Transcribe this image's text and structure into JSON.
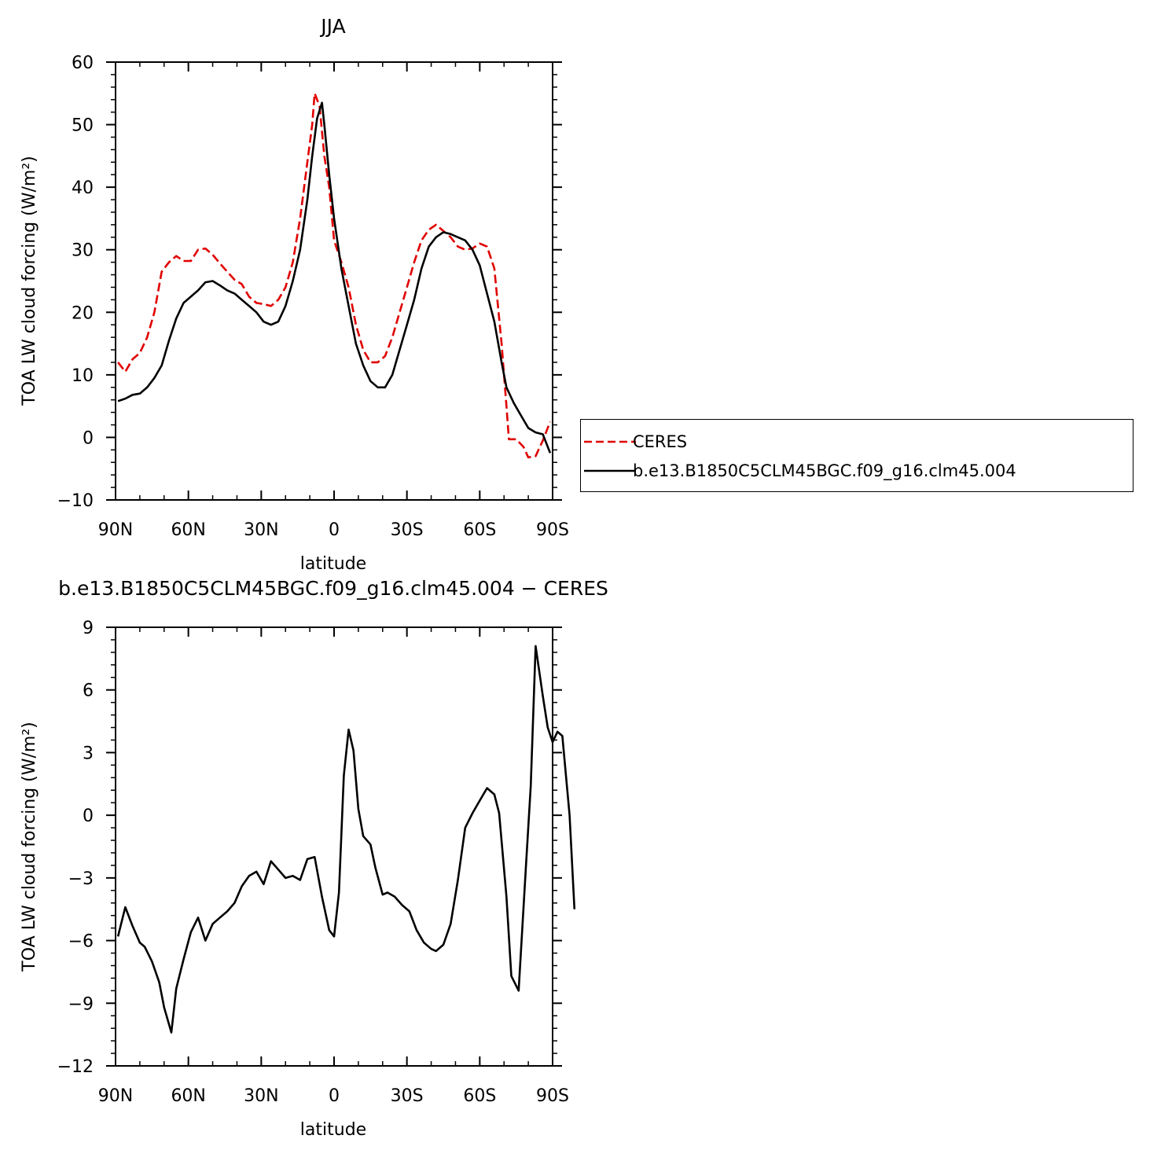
{
  "chart_data": [
    {
      "type": "line",
      "title": "JJA",
      "xlabel": "latitude",
      "ylabel": "TOA LW cloud forcing (W/m²)",
      "xlim": [
        90,
        -90
      ],
      "ylim": [
        -10,
        60
      ],
      "xticks": [
        {
          "value": 90,
          "label": "90N"
        },
        {
          "value": 60,
          "label": "60N"
        },
        {
          "value": 30,
          "label": "30N"
        },
        {
          "value": 0,
          "label": "0"
        },
        {
          "value": -30,
          "label": "30S"
        },
        {
          "value": -60,
          "label": "60S"
        },
        {
          "value": -90,
          "label": "90S"
        }
      ],
      "yticks": [
        {
          "value": 60,
          "label": "60"
        },
        {
          "value": 50,
          "label": "50"
        },
        {
          "value": 40,
          "label": "40"
        },
        {
          "value": 30,
          "label": "30"
        },
        {
          "value": 20,
          "label": "20"
        },
        {
          "value": 10,
          "label": "10"
        },
        {
          "value": 0,
          "label": "0"
        },
        {
          "value": -10,
          "label": "−10"
        }
      ],
      "legend_position": "right",
      "series": [
        {
          "name": "CERES",
          "color": "#e00000",
          "dash": true,
          "points": [
            [
              89,
              12
            ],
            [
              86,
              10.5
            ],
            [
              83,
              12.5
            ],
            [
              80,
              13.5
            ],
            [
              77,
              16
            ],
            [
              74,
              20
            ],
            [
              71,
              26.5
            ],
            [
              68,
              28
            ],
            [
              65,
              29
            ],
            [
              62,
              28.2
            ],
            [
              59,
              28.2
            ],
            [
              56,
              30
            ],
            [
              53,
              30.2
            ],
            [
              50,
              29.2
            ],
            [
              47,
              27.8
            ],
            [
              44,
              26.5
            ],
            [
              41,
              25.2
            ],
            [
              38,
              24.5
            ],
            [
              35,
              22.5
            ],
            [
              32,
              21.5
            ],
            [
              29,
              21.3
            ],
            [
              26,
              21
            ],
            [
              23,
              22
            ],
            [
              20,
              24
            ],
            [
              17,
              28
            ],
            [
              14,
              35
            ],
            [
              11,
              44
            ],
            [
              9,
              50
            ],
            [
              8,
              55
            ],
            [
              6,
              53
            ],
            [
              4,
              45
            ],
            [
              2,
              40
            ],
            [
              0,
              31.5
            ],
            [
              -3,
              28
            ],
            [
              -6,
              24
            ],
            [
              -9,
              18
            ],
            [
              -12,
              14
            ],
            [
              -15,
              12
            ],
            [
              -18,
              12
            ],
            [
              -21,
              13
            ],
            [
              -24,
              16
            ],
            [
              -27,
              20
            ],
            [
              -30,
              24
            ],
            [
              -33,
              28
            ],
            [
              -36,
              31.5
            ],
            [
              -39,
              33.2
            ],
            [
              -42,
              34
            ],
            [
              -45,
              33
            ],
            [
              -48,
              32
            ],
            [
              -51,
              30.5
            ],
            [
              -54,
              30
            ],
            [
              -57,
              30.2
            ],
            [
              -60,
              31
            ],
            [
              -63,
              30.5
            ],
            [
              -66,
              27
            ],
            [
              -69,
              15
            ],
            [
              -71,
              5
            ],
            [
              -72,
              -0.3
            ],
            [
              -75,
              -0.3
            ],
            [
              -78,
              -1.5
            ],
            [
              -80,
              -3.2
            ],
            [
              -83,
              -3
            ],
            [
              -86,
              -0.5
            ],
            [
              -89,
              2.5
            ]
          ]
        },
        {
          "name": "b.e13.B1850C5CLM45BGC.f09_g16.clm45.004",
          "color": "#000000",
          "dash": false,
          "points": [
            [
              89,
              5.8
            ],
            [
              86,
              6.2
            ],
            [
              83,
              6.8
            ],
            [
              80,
              7
            ],
            [
              77,
              8
            ],
            [
              74,
              9.5
            ],
            [
              71,
              11.5
            ],
            [
              68,
              15.5
            ],
            [
              65,
              19
            ],
            [
              62,
              21.5
            ],
            [
              59,
              22.5
            ],
            [
              56,
              23.5
            ],
            [
              53,
              24.8
            ],
            [
              50,
              25
            ],
            [
              47,
              24.3
            ],
            [
              44,
              23.5
            ],
            [
              41,
              23
            ],
            [
              38,
              22
            ],
            [
              35,
              21
            ],
            [
              32,
              20
            ],
            [
              29,
              18.5
            ],
            [
              26,
              18
            ],
            [
              23,
              18.5
            ],
            [
              20,
              21
            ],
            [
              17,
              25
            ],
            [
              14,
              30
            ],
            [
              11,
              38
            ],
            [
              9,
              45
            ],
            [
              7,
              51
            ],
            [
              5,
              53.5
            ],
            [
              4,
              50
            ],
            [
              2,
              42
            ],
            [
              0,
              35
            ],
            [
              -3,
              27
            ],
            [
              -6,
              21
            ],
            [
              -9,
              15
            ],
            [
              -12,
              11.5
            ],
            [
              -15,
              9
            ],
            [
              -18,
              8
            ],
            [
              -21,
              8
            ],
            [
              -24,
              10
            ],
            [
              -27,
              14
            ],
            [
              -30,
              18
            ],
            [
              -33,
              22
            ],
            [
              -36,
              27
            ],
            [
              -39,
              30.5
            ],
            [
              -42,
              32
            ],
            [
              -45,
              32.8
            ],
            [
              -48,
              32.5
            ],
            [
              -51,
              32
            ],
            [
              -54,
              31.5
            ],
            [
              -57,
              30
            ],
            [
              -60,
              27.5
            ],
            [
              -63,
              23
            ],
            [
              -66,
              18.5
            ],
            [
              -69,
              12
            ],
            [
              -71,
              8
            ],
            [
              -74,
              5.5
            ],
            [
              -77,
              3.5
            ],
            [
              -80,
              1.5
            ],
            [
              -83,
              0.8
            ],
            [
              -86,
              0.5
            ],
            [
              -89,
              -2.5
            ]
          ]
        }
      ]
    },
    {
      "type": "line",
      "title": "b.e13.B1850C5CLM45BGC.f09_g16.clm45.004 − CERES",
      "xlabel": "latitude",
      "ylabel": "TOA LW cloud forcing (W/m²)",
      "xlim": [
        90,
        -90
      ],
      "ylim": [
        -12,
        9
      ],
      "xticks": [
        {
          "value": 90,
          "label": "90N"
        },
        {
          "value": 60,
          "label": "60N"
        },
        {
          "value": 30,
          "label": "30N"
        },
        {
          "value": 0,
          "label": "0"
        },
        {
          "value": -30,
          "label": "30S"
        },
        {
          "value": -60,
          "label": "60S"
        },
        {
          "value": -90,
          "label": "90S"
        }
      ],
      "yticks": [
        {
          "value": 9,
          "label": "9"
        },
        {
          "value": 6,
          "label": "6"
        },
        {
          "value": 3,
          "label": "3"
        },
        {
          "value": 0,
          "label": "0"
        },
        {
          "value": -3,
          "label": "−3"
        },
        {
          "value": -6,
          "label": "−6"
        },
        {
          "value": -9,
          "label": "−9"
        },
        {
          "value": -12,
          "label": "−12"
        }
      ],
      "series": [
        {
          "name": "",
          "color": "#000000",
          "dash": false,
          "points": [
            [
              89,
              -5.8
            ],
            [
              86,
              -4.4
            ],
            [
              83,
              -5.3
            ],
            [
              80,
              -6.1
            ],
            [
              78,
              -6.3
            ],
            [
              75,
              -7
            ],
            [
              72,
              -8
            ],
            [
              70,
              -9.2
            ],
            [
              67,
              -10.4
            ],
            [
              65,
              -8.3
            ],
            [
              62,
              -6.9
            ],
            [
              59,
              -5.6
            ],
            [
              56,
              -4.9
            ],
            [
              53,
              -6
            ],
            [
              50,
              -5.2
            ],
            [
              47,
              -4.9
            ],
            [
              44,
              -4.6
            ],
            [
              41,
              -4.2
            ],
            [
              38,
              -3.4
            ],
            [
              35,
              -2.9
            ],
            [
              32,
              -2.7
            ],
            [
              29,
              -3.3
            ],
            [
              26,
              -2.2
            ],
            [
              23,
              -2.6
            ],
            [
              20,
              -3
            ],
            [
              17,
              -2.9
            ],
            [
              14,
              -3.1
            ],
            [
              11,
              -2.1
            ],
            [
              8,
              -2
            ],
            [
              5,
              -3.9
            ],
            [
              2,
              -5.5
            ],
            [
              0,
              -5.8
            ],
            [
              -2,
              -3.7
            ],
            [
              -4,
              1.9
            ],
            [
              -6,
              4.1
            ],
            [
              -8,
              3.1
            ],
            [
              -10,
              0.3
            ],
            [
              -12,
              -1
            ],
            [
              -15,
              -1.4
            ],
            [
              -17,
              -2.5
            ],
            [
              -20,
              -3.8
            ],
            [
              -22,
              -3.7
            ],
            [
              -25,
              -3.9
            ],
            [
              -28,
              -4.3
            ],
            [
              -31,
              -4.6
            ],
            [
              -34,
              -5.5
            ],
            [
              -37,
              -6.1
            ],
            [
              -40,
              -6.4
            ],
            [
              -42,
              -6.5
            ],
            [
              -45,
              -6.2
            ],
            [
              -48,
              -5.2
            ],
            [
              -51,
              -3.1
            ],
            [
              -54,
              -0.6
            ],
            [
              -57,
              0.1
            ],
            [
              -60,
              0.7
            ],
            [
              -63,
              1.3
            ],
            [
              -66,
              1
            ],
            [
              -68,
              0.1
            ],
            [
              -71,
              -3.9
            ],
            [
              -73,
              -7.7
            ],
            [
              -76,
              -8.4
            ],
            [
              -79,
              -2.5
            ],
            [
              -81,
              1.4
            ],
            [
              -83,
              8.1
            ],
            [
              -86,
              5.7
            ],
            [
              -88,
              4.2
            ],
            [
              -90,
              3.5
            ],
            [
              -92,
              4
            ],
            [
              -94,
              3.8
            ],
            [
              -97,
              0
            ],
            [
              -99,
              -4.5
            ]
          ]
        }
      ]
    }
  ],
  "legend": [
    {
      "label": "CERES",
      "color": "#e00000",
      "dash": true
    },
    {
      "label": "b.e13.B1850C5CLM45BGC.f09_g16.clm45.004",
      "color": "#000000",
      "dash": false
    }
  ]
}
